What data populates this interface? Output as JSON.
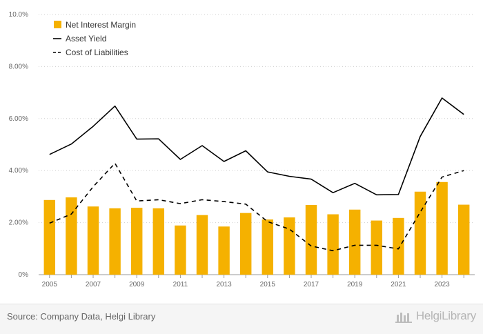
{
  "chart_data": {
    "type": "bar+line",
    "categories": [
      "2005",
      "2006",
      "2007",
      "2008",
      "2009",
      "2010",
      "2011",
      "2012",
      "2013",
      "2014",
      "2015",
      "2016",
      "2017",
      "2018",
      "2019",
      "2020",
      "2021",
      "2022",
      "2023",
      "2024"
    ],
    "x_tick_labels": [
      "2005",
      "2007",
      "2009",
      "2011",
      "2013",
      "2015",
      "2017",
      "2019",
      "2021",
      "2023"
    ],
    "y_tick_labels": [
      "0%",
      "2.00%",
      "4.00%",
      "6.00%",
      "8.00%",
      "10.0%"
    ],
    "ylim": [
      0,
      10
    ],
    "series": [
      {
        "name": "Net Interest Margin",
        "type": "bar",
        "color": "#f5b100",
        "values": [
          2.87,
          2.97,
          2.62,
          2.55,
          2.57,
          2.55,
          1.89,
          2.29,
          1.85,
          2.37,
          2.12,
          2.2,
          2.68,
          2.32,
          2.5,
          2.08,
          2.18,
          3.19,
          3.56,
          2.69
        ]
      },
      {
        "name": "Asset Yield",
        "type": "line",
        "style": "solid",
        "color": "#000000",
        "values": [
          4.62,
          5.02,
          5.7,
          6.48,
          5.21,
          5.22,
          4.43,
          4.96,
          4.35,
          4.76,
          3.95,
          3.78,
          3.67,
          3.15,
          3.51,
          3.07,
          3.08,
          5.31,
          6.79,
          6.16
        ]
      },
      {
        "name": "Cost of Liabilities",
        "type": "line",
        "style": "dashed",
        "color": "#000000",
        "values": [
          1.98,
          2.33,
          3.38,
          4.28,
          2.83,
          2.88,
          2.73,
          2.88,
          2.81,
          2.71,
          2.04,
          1.75,
          1.1,
          0.92,
          1.13,
          1.13,
          0.99,
          2.4,
          3.75,
          4.0
        ]
      }
    ],
    "legend_position": "top-left",
    "grid": "horizontal dotted"
  },
  "footer": {
    "source": "Source: Company Data, Helgi Library",
    "brand": "HelgiLibrary"
  }
}
